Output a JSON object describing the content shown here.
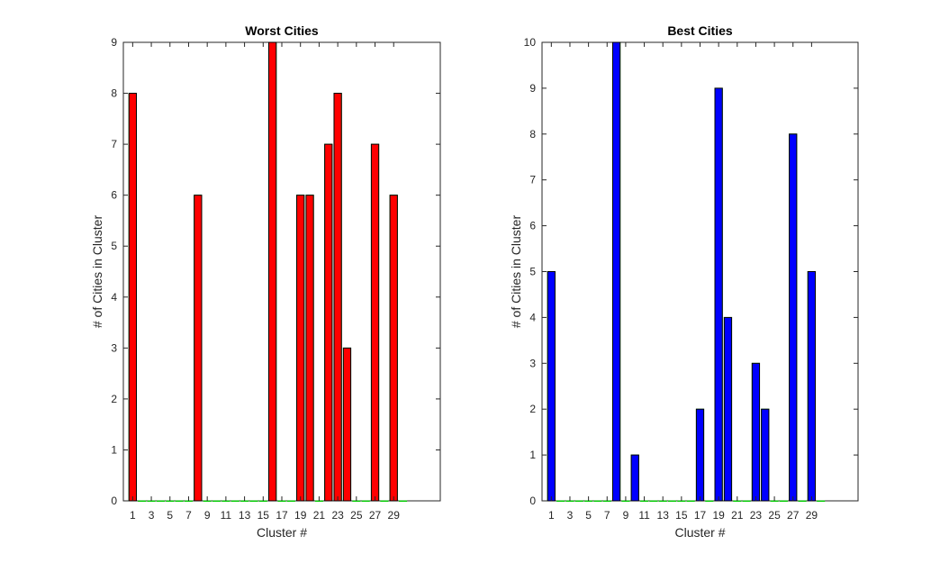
{
  "chart_data": [
    {
      "type": "bar",
      "title": "Worst Cities",
      "xlabel": "Cluster #",
      "ylabel": "# of Cities in Cluster",
      "x": [
        1,
        2,
        3,
        4,
        5,
        6,
        7,
        8,
        9,
        10,
        11,
        12,
        13,
        14,
        15,
        16,
        17,
        18,
        19,
        20,
        21,
        22,
        23,
        24,
        25,
        26,
        27,
        28,
        29,
        30
      ],
      "values": [
        8,
        0,
        0,
        0,
        0,
        0,
        0,
        6,
        0,
        0,
        0,
        0,
        0,
        0,
        0,
        9,
        0,
        0,
        6,
        6,
        0,
        7,
        8,
        3,
        0,
        0,
        7,
        0,
        6,
        0
      ],
      "xticks": [
        "1",
        "3",
        "5",
        "7",
        "9",
        "11",
        "13",
        "15",
        "17",
        "19",
        "21",
        "23",
        "25",
        "27",
        "29"
      ],
      "yticks": [
        "0",
        "1",
        "2",
        "3",
        "4",
        "5",
        "6",
        "7",
        "8",
        "9"
      ],
      "xlim": [
        0,
        34
      ],
      "ylim": [
        0,
        9
      ],
      "grid": false,
      "colors": {
        "bar_fill": "#ff0000",
        "bar_edge": "#00cc00"
      }
    },
    {
      "type": "bar",
      "title": "Best Cities",
      "xlabel": "Cluster #",
      "ylabel": "# of Cities in Cluster",
      "x": [
        1,
        2,
        3,
        4,
        5,
        6,
        7,
        8,
        9,
        10,
        11,
        12,
        13,
        14,
        15,
        16,
        17,
        18,
        19,
        20,
        21,
        22,
        23,
        24,
        25,
        26,
        27,
        28,
        29,
        30
      ],
      "values": [
        5,
        0,
        0,
        0,
        0,
        0,
        0,
        10,
        0,
        1,
        0,
        0,
        0,
        0,
        0,
        0,
        2,
        0,
        9,
        4,
        0,
        0,
        3,
        2,
        0,
        0,
        8,
        0,
        5,
        0
      ],
      "xticks": [
        "1",
        "3",
        "5",
        "7",
        "9",
        "11",
        "13",
        "15",
        "17",
        "19",
        "21",
        "23",
        "25",
        "27",
        "29"
      ],
      "yticks": [
        "0",
        "1",
        "2",
        "3",
        "4",
        "5",
        "6",
        "7",
        "8",
        "9",
        "10"
      ],
      "xlim": [
        0,
        34
      ],
      "ylim": [
        0,
        10
      ],
      "grid": false,
      "colors": {
        "bar_fill": "#0000ff",
        "bar_edge": "#00cc00"
      }
    }
  ]
}
